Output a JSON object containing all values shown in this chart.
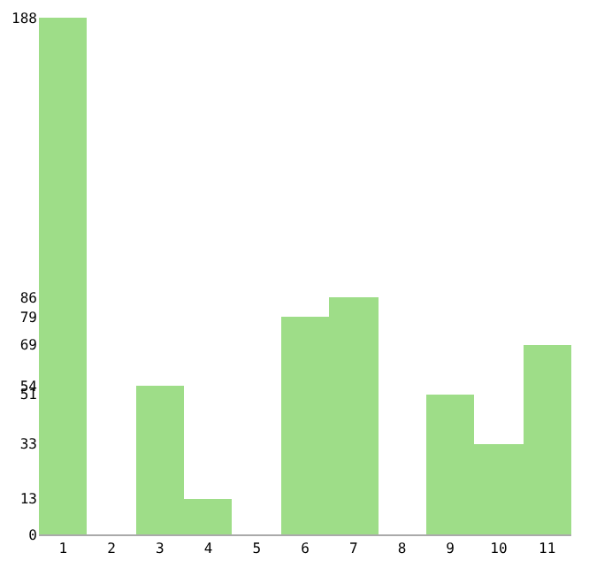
{
  "chart_data": {
    "type": "bar",
    "categories": [
      "1",
      "2",
      "3",
      "4",
      "5",
      "6",
      "7",
      "8",
      "9",
      "10",
      "11"
    ],
    "values": [
      188,
      0,
      54,
      13,
      0,
      79,
      86,
      0,
      51,
      33,
      69
    ],
    "color": "#9edd88",
    "ylim": [
      0,
      188
    ],
    "yticks": [
      0,
      13,
      33,
      51,
      54,
      69,
      79,
      86,
      188
    ],
    "legend": false
  }
}
